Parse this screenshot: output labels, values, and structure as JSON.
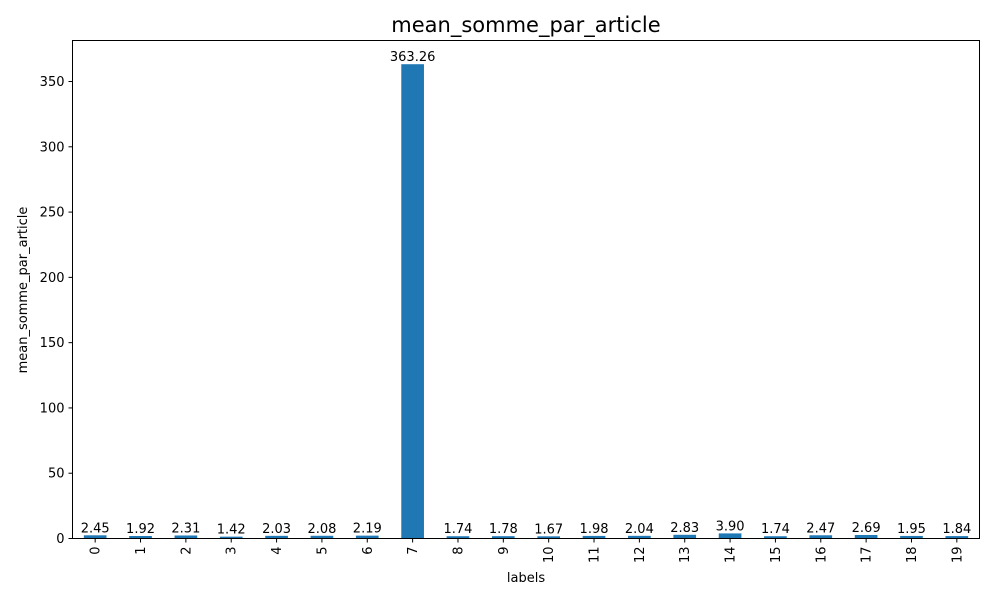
{
  "chart_data": {
    "type": "bar",
    "title": "mean_somme_par_article",
    "xlabel": "labels",
    "ylabel": "mean_somme_par_article",
    "categories": [
      "0",
      "1",
      "2",
      "3",
      "4",
      "5",
      "6",
      "7",
      "8",
      "9",
      "10",
      "11",
      "12",
      "13",
      "14",
      "15",
      "16",
      "17",
      "18",
      "19"
    ],
    "values": [
      2.45,
      1.92,
      2.31,
      1.42,
      2.03,
      2.08,
      2.19,
      363.26,
      1.74,
      1.78,
      1.67,
      1.98,
      2.04,
      2.83,
      3.9,
      1.74,
      2.47,
      2.69,
      1.95,
      1.84
    ],
    "data_labels": [
      "2.45",
      "1.92",
      "2.31",
      "1.42",
      "2.03",
      "2.08",
      "2.19",
      "363.26",
      "1.74",
      "1.78",
      "1.67",
      "1.98",
      "2.04",
      "2.83",
      "3.90",
      "1.74",
      "2.47",
      "2.69",
      "1.95",
      "1.84"
    ],
    "ylim": [
      0,
      381.42
    ],
    "yticks": [
      0,
      50,
      100,
      150,
      200,
      250,
      300,
      350
    ],
    "bar_color": "#1f77b4",
    "grid": false,
    "x_tick_rotation": "vertical"
  }
}
